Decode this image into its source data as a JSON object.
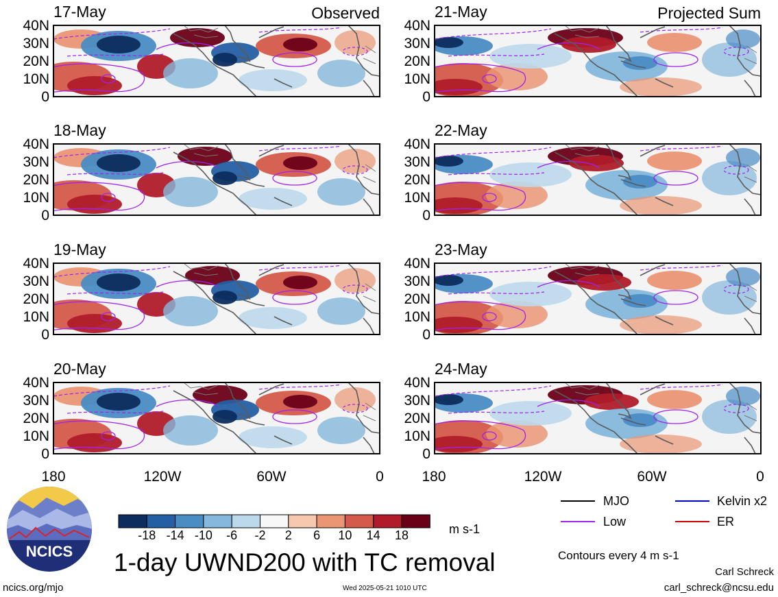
{
  "panels": [
    {
      "date": "17-May",
      "tag": "Observed"
    },
    {
      "date": "18-May",
      "tag": ""
    },
    {
      "date": "19-May",
      "tag": ""
    },
    {
      "date": "20-May",
      "tag": ""
    },
    {
      "date": "21-May",
      "tag": "Projected Sum"
    },
    {
      "date": "22-May",
      "tag": ""
    },
    {
      "date": "23-May",
      "tag": ""
    },
    {
      "date": "24-May",
      "tag": ""
    }
  ],
  "y_ticks": [
    "40N",
    "30N",
    "20N",
    "10N",
    "0"
  ],
  "x_ticks": [
    "180",
    "120W",
    "60W",
    "0"
  ],
  "colorbar": {
    "labels": [
      "-18",
      "-14",
      "-10",
      "-6",
      "-2",
      "2",
      "6",
      "10",
      "14",
      "18"
    ],
    "colors": [
      "#0c2d5e",
      "#245fa3",
      "#4a8cc4",
      "#85b8dc",
      "#bcd9ec",
      "#f7f7f7",
      "#f6c9ae",
      "#ea9674",
      "#d45a4b",
      "#b01c2a",
      "#6a0018"
    ],
    "unit": "m s-1"
  },
  "legend": {
    "mjo": {
      "label": "MJO",
      "color": "#000000"
    },
    "low": {
      "label": "Low",
      "color": "#a020f0"
    },
    "kelvin": {
      "label": "Kelvin x2",
      "color": "#0000cc"
    },
    "er": {
      "label": "ER",
      "color": "#cc0000"
    }
  },
  "contour_note": "Contours every 4 m s-1",
  "main_title": "1-day UWND200 with TC removal",
  "logo_text": "NCICS",
  "footer_url": "ncics.org/mjo",
  "timestamp": "Wed 2025-05-21 1010 UTC",
  "author": "Carl Schreck",
  "email": "carl_schreck@ncsu.edu"
}
